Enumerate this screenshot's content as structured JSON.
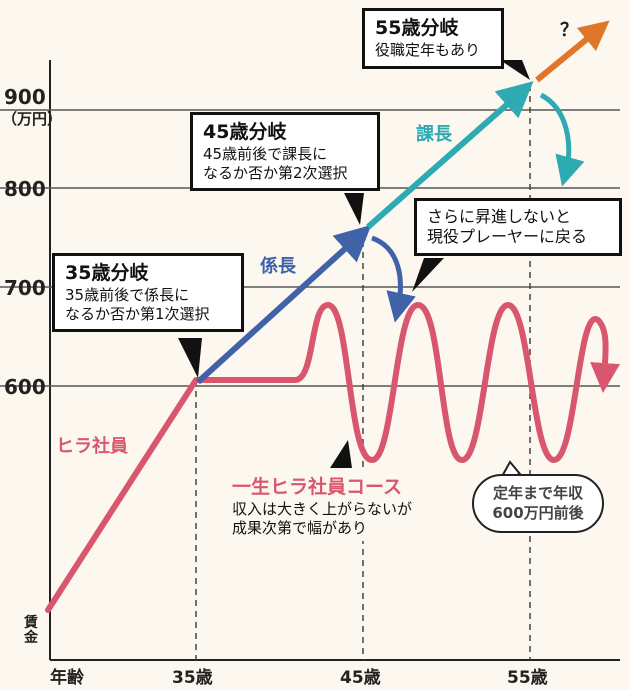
{
  "y_axis": {
    "unit_label": "（万円）",
    "side_label": "賃\n金",
    "ticks": [
      "900",
      "800",
      "700",
      "600"
    ]
  },
  "x_axis": {
    "label": "年齢",
    "ticks": [
      "35歳",
      "45歳",
      "55歳"
    ]
  },
  "callouts": {
    "c35": {
      "title": "35歳分岐",
      "body": "35歳前後で係長に\nなるか否か第1次選択"
    },
    "c45": {
      "title": "45歳分岐",
      "body": "45歳前後で課長に\nなるか否か第2次選択"
    },
    "c55": {
      "title": "55歳分岐",
      "body": "役職定年もあり"
    },
    "return": {
      "body": "さらに昇進しないと\n現役プレーヤーに戻る"
    },
    "hira": {
      "title": "一生ヒラ社員コース",
      "body": "収入は大きく上がらないが\n成果次第で幅があり"
    }
  },
  "labels": {
    "kakaricho": "係長",
    "kacho": "課長",
    "hira": "ヒラ社員",
    "question": "？"
  },
  "bubble": {
    "text": "定年まで年収\n600万円前後"
  },
  "colors": {
    "hira": "#d9576e",
    "kakaricho": "#3f62a8",
    "kacho": "#2eaab2",
    "beyond": "#e0762a",
    "grid": "#444444"
  }
}
